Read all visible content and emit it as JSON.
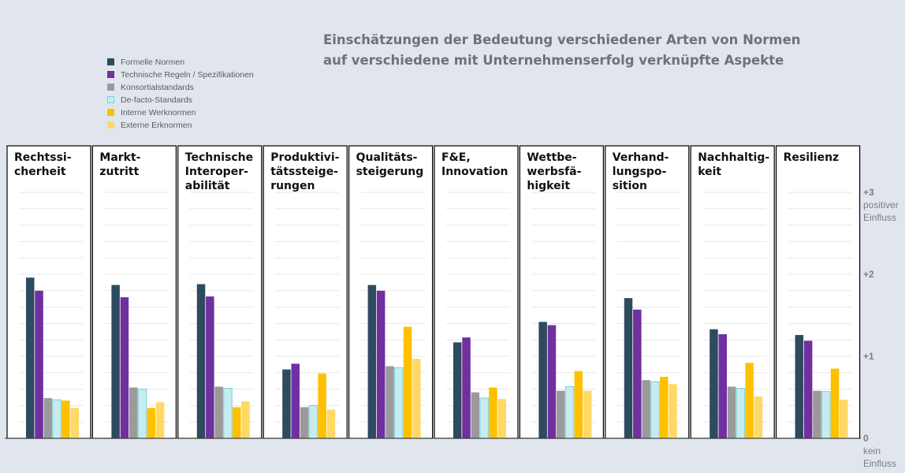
{
  "title_lines": [
    "Einschätzungen der Bedeutung verschiedener Arten von Normen",
    "auf verschiedene mit Unternehmenserfolg verknüpfte Aspekte"
  ],
  "chart_data": {
    "type": "bar",
    "title": "Einschätzungen der Bedeutung verschiedener Arten von Normen auf verschiedene mit Unternehmenserfolg verknüpfte Aspekte",
    "ylim": [
      0,
      3
    ],
    "grid": true,
    "legend_position": "top-left",
    "y_ticks": [
      {
        "value": 3,
        "lines": [
          "+3",
          "positiver",
          "Einfluss"
        ]
      },
      {
        "value": 2,
        "lines": [
          "+2"
        ]
      },
      {
        "value": 1,
        "lines": [
          "+1"
        ]
      },
      {
        "value": 0,
        "lines": [
          "0",
          "kein",
          "Einfluss"
        ]
      }
    ],
    "categories": [
      [
        "Rechtssi-",
        "cherheit"
      ],
      [
        "Markt-",
        "zutritt"
      ],
      [
        "Technische",
        "Interoper-",
        "abilität"
      ],
      [
        "Produktivi-",
        "tätssteige-",
        "rungen"
      ],
      [
        "Qualitäts-",
        "steigerung"
      ],
      [
        "F&E,",
        "Innovation"
      ],
      [
        "Wettbe-",
        "werbsfä-",
        "higkeit"
      ],
      [
        "Verhand-",
        "lungspo-",
        "sition"
      ],
      [
        "Nachhaltig-",
        "keit"
      ],
      [
        "Resilienz"
      ]
    ],
    "series": [
      {
        "name": "Formelle Normen",
        "color": "#2e4a5e",
        "border": "#2e4a5e",
        "values": [
          1.96,
          1.87,
          1.88,
          0.84,
          1.87,
          1.17,
          1.42,
          1.71,
          1.33,
          1.26
        ]
      },
      {
        "name": "Technische Regeln / Spezifikationen",
        "color": "#7030a0",
        "border": "#7030a0",
        "values": [
          1.8,
          1.72,
          1.73,
          0.91,
          1.8,
          1.23,
          1.38,
          1.57,
          1.27,
          1.19
        ]
      },
      {
        "name": "Konsortialstandards",
        "color": "#9a9a9a",
        "border": "#9a9a9a",
        "values": [
          0.49,
          0.62,
          0.63,
          0.38,
          0.88,
          0.56,
          0.58,
          0.71,
          0.63,
          0.58
        ]
      },
      {
        "name": "De-facto-Standards",
        "color": "#c6ecef",
        "border": "#79cfd6",
        "values": [
          0.47,
          0.6,
          0.61,
          0.4,
          0.86,
          0.49,
          0.63,
          0.69,
          0.61,
          0.57
        ]
      },
      {
        "name": "Interne Werknormen",
        "color": "#ffc000",
        "border": "#ffc000",
        "values": [
          0.46,
          0.37,
          0.38,
          0.79,
          1.36,
          0.62,
          0.82,
          0.75,
          0.92,
          0.85
        ]
      },
      {
        "name": "Externe Erknormen",
        "color": "#ffd966",
        "border": "#ffd966",
        "values": [
          0.37,
          0.44,
          0.45,
          0.35,
          0.97,
          0.48,
          0.58,
          0.66,
          0.51,
          0.47
        ]
      }
    ]
  }
}
